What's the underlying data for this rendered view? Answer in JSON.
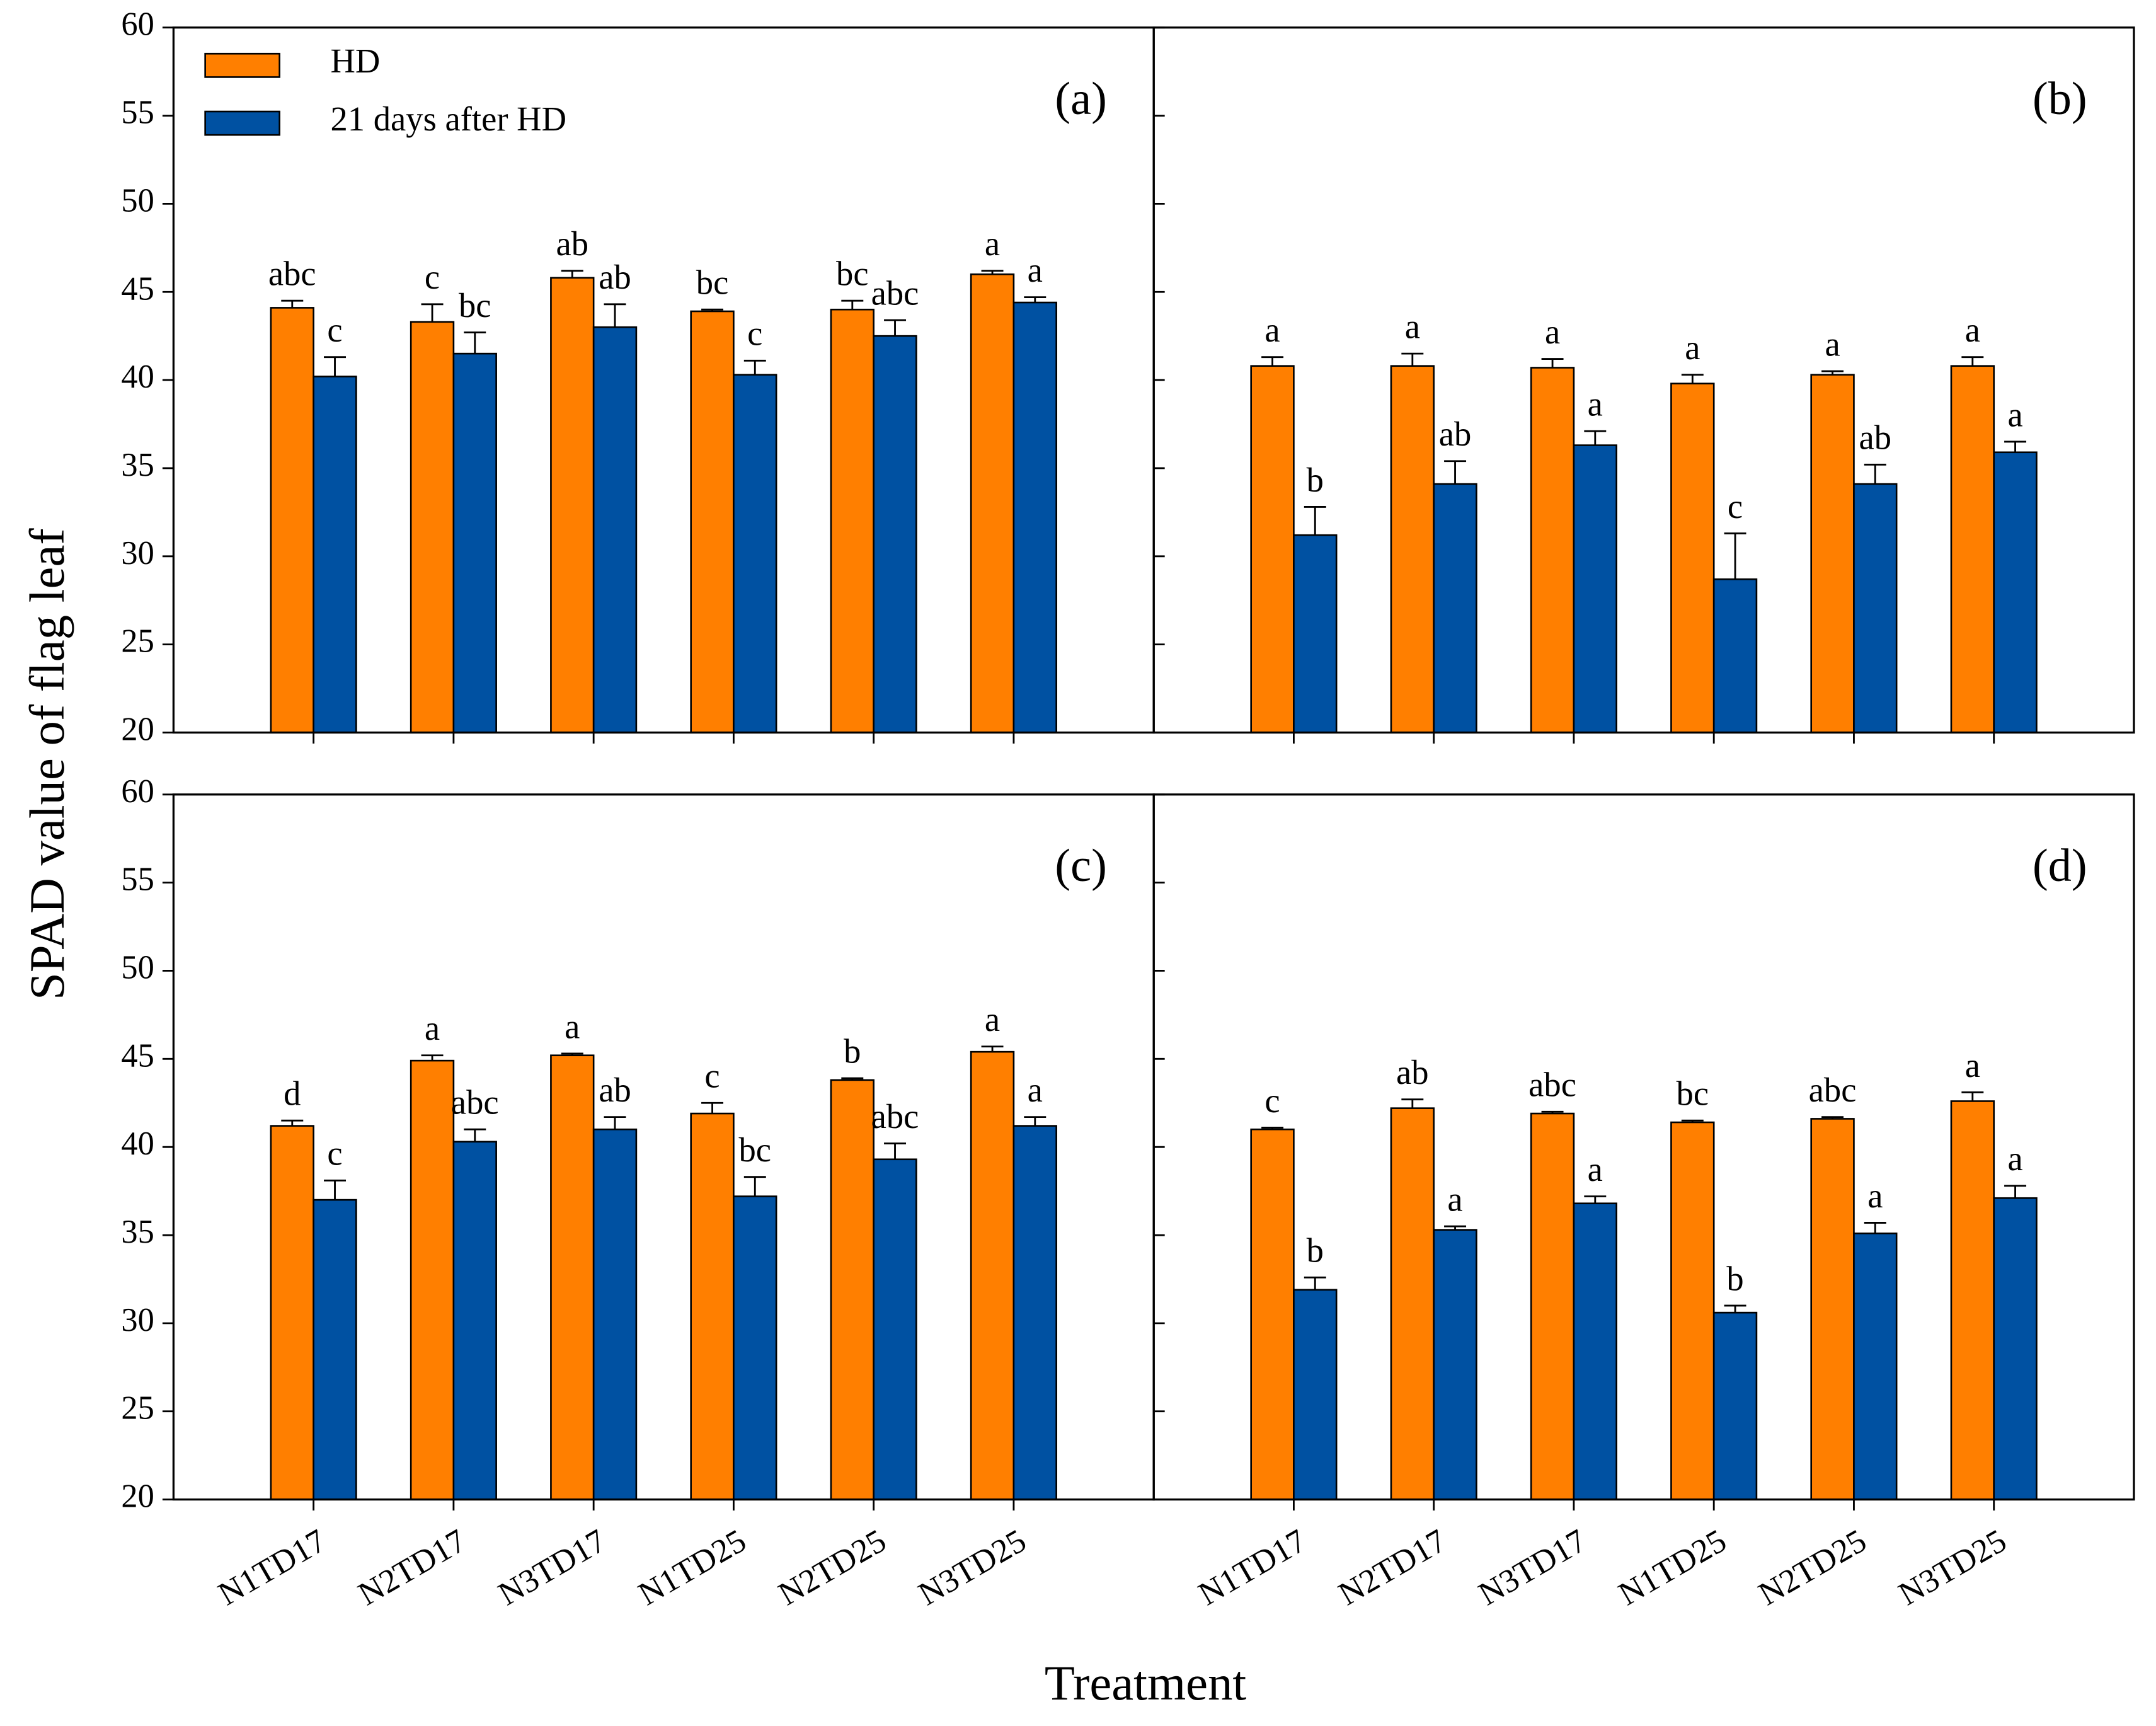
{
  "ylabel": "SPAD value of flag leaf",
  "xlabel": "Treatment",
  "chart_data": [
    {
      "type": "bar",
      "panel_label": "(a)",
      "categories": [
        null,
        null,
        null,
        null,
        null,
        null
      ],
      "ylim": [
        20,
        60
      ],
      "yticks": [
        20,
        25,
        30,
        35,
        40,
        45,
        50,
        55,
        60
      ],
      "show_ytick_labels": true,
      "legend": "upper left",
      "series": [
        {
          "name": "HD",
          "color": "#ff7f00",
          "values": [
            44.1,
            43.3,
            45.8,
            43.9,
            44.0,
            46.0
          ],
          "errors": [
            0.4,
            1.0,
            0.4,
            0.1,
            0.5,
            0.2
          ],
          "letters": [
            "abc",
            "c",
            "ab",
            "bc",
            "bc",
            "a"
          ]
        },
        {
          "name": "21 days after HD",
          "color": "#0051a2",
          "values": [
            40.2,
            41.5,
            43.0,
            40.3,
            42.5,
            44.4
          ],
          "errors": [
            1.1,
            1.2,
            1.3,
            0.8,
            0.9,
            0.3
          ],
          "letters": [
            "c",
            "bc",
            "ab",
            "c",
            "abc",
            "a"
          ]
        }
      ]
    },
    {
      "type": "bar",
      "panel_label": "(b)",
      "categories": [
        null,
        null,
        null,
        null,
        null,
        null
      ],
      "ylim": [
        20,
        60
      ],
      "yticks": [
        20,
        25,
        30,
        35,
        40,
        45,
        50,
        55,
        60
      ],
      "show_ytick_labels": false,
      "series": [
        {
          "color": "#ff7f00",
          "values": [
            40.8,
            40.8,
            40.7,
            39.8,
            40.3,
            40.8
          ],
          "errors": [
            0.5,
            0.7,
            0.5,
            0.5,
            0.2,
            0.5
          ],
          "letters": [
            "a",
            "a",
            "a",
            "a",
            "a",
            "a"
          ]
        },
        {
          "color": "#0051a2",
          "values": [
            31.2,
            34.1,
            36.3,
            28.7,
            34.1,
            35.9
          ],
          "errors": [
            1.6,
            1.3,
            0.8,
            2.6,
            1.1,
            0.6
          ],
          "letters": [
            "b",
            "ab",
            "a",
            "c",
            "ab",
            "a"
          ]
        }
      ]
    },
    {
      "type": "bar",
      "panel_label": "(c)",
      "categories": [
        "N1TD17",
        "N2TD17",
        "N3TD17",
        "N1TD25",
        "N2TD25",
        "N3TD25"
      ],
      "ylim": [
        20,
        60
      ],
      "yticks": [
        20,
        25,
        30,
        35,
        40,
        45,
        50,
        55,
        60
      ],
      "show_ytick_labels": true,
      "series": [
        {
          "color": "#ff7f00",
          "values": [
            41.2,
            44.9,
            45.2,
            41.9,
            43.8,
            45.4
          ],
          "errors": [
            0.3,
            0.3,
            0.1,
            0.6,
            0.1,
            0.3
          ],
          "letters": [
            "d",
            "a",
            "a",
            "c",
            "b",
            "a"
          ]
        },
        {
          "color": "#0051a2",
          "values": [
            37.0,
            40.3,
            41.0,
            37.2,
            39.3,
            41.2
          ],
          "errors": [
            1.1,
            0.7,
            0.7,
            1.1,
            0.9,
            0.5
          ],
          "letters": [
            "c",
            "abc",
            "ab",
            "bc",
            "abc",
            "a"
          ]
        }
      ]
    },
    {
      "type": "bar",
      "panel_label": "(d)",
      "categories": [
        "N1TD17",
        "N2TD17",
        "N3TD17",
        "N1TD25",
        "N2TD25",
        "N3TD25"
      ],
      "ylim": [
        20,
        60
      ],
      "yticks": [
        20,
        25,
        30,
        35,
        40,
        45,
        50,
        55,
        60
      ],
      "show_ytick_labels": false,
      "series": [
        {
          "color": "#ff7f00",
          "values": [
            41.0,
            42.2,
            41.9,
            41.4,
            41.6,
            42.6
          ],
          "errors": [
            0.1,
            0.5,
            0.1,
            0.1,
            0.1,
            0.5
          ],
          "letters": [
            "c",
            "ab",
            "abc",
            "bc",
            "abc",
            "a"
          ]
        },
        {
          "color": "#0051a2",
          "values": [
            31.9,
            35.3,
            36.8,
            30.6,
            35.1,
            37.1
          ],
          "errors": [
            0.7,
            0.2,
            0.4,
            0.4,
            0.6,
            0.7
          ],
          "letters": [
            "b",
            "a",
            "a",
            "b",
            "a",
            "a"
          ]
        }
      ]
    }
  ]
}
